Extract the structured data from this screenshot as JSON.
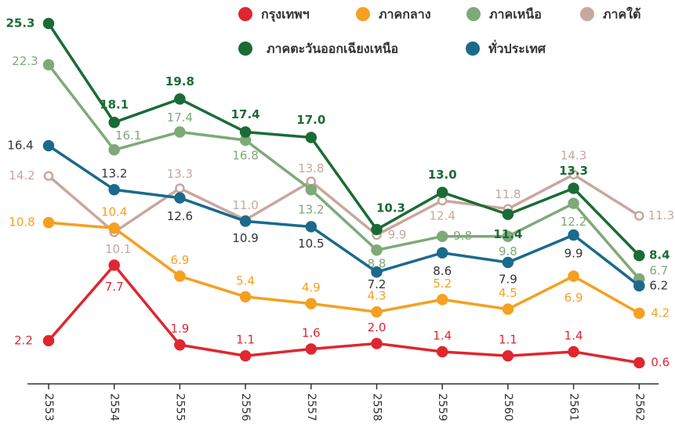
{
  "chart_data": {
    "type": "line",
    "categories": [
      "2553",
      "2554",
      "2555",
      "2556",
      "2557",
      "2558",
      "2559",
      "2560",
      "2561",
      "2562"
    ],
    "series": [
      {
        "name": "กรุงเทพฯ",
        "color": "#e0262f",
        "values": [
          2.2,
          7.7,
          1.9,
          1.1,
          1.6,
          2.0,
          1.4,
          1.1,
          1.4,
          0.6
        ],
        "value_labels": [
          "2.2",
          "7.7",
          "1.9",
          "1.1",
          "1.6",
          "2.0",
          "1.4",
          "1.1",
          "1.4",
          "0.6"
        ]
      },
      {
        "name": "ภาคกลาง",
        "color": "#f5a020",
        "values": [
          10.8,
          10.4,
          6.9,
          5.4,
          4.9,
          4.3,
          5.2,
          4.5,
          6.9,
          4.2
        ],
        "value_labels": [
          "10.8",
          "10.4",
          "6.9",
          "5.4",
          "4.9",
          "4.3",
          "5.2",
          "4.5",
          "6.9",
          "4.2"
        ]
      },
      {
        "name": "ภาคเหนือ",
        "color": "#7eaa78",
        "values": [
          22.3,
          16.1,
          17.4,
          16.8,
          13.2,
          8.8,
          9.8,
          9.8,
          12.2,
          6.7
        ],
        "value_labels": [
          "22.3",
          "16.1",
          "17.4",
          "16.8",
          "13.2",
          "8.8",
          "9.8",
          "9.8",
          "12.2",
          "6.7"
        ]
      },
      {
        "name": "ภาคใต้",
        "color": "#c8a79d",
        "values": [
          14.2,
          10.1,
          13.3,
          11.0,
          13.8,
          9.9,
          12.4,
          11.8,
          14.3,
          11.3
        ],
        "value_labels": [
          "14.2",
          "10.1",
          "13.3",
          "11.0",
          "13.8",
          "9.9",
          "12.4",
          "11.8",
          "14.3",
          "11.3"
        ]
      },
      {
        "name": "ภาคตะวันออกเฉียงเหนือ",
        "color": "#1b6b36",
        "values": [
          25.3,
          18.1,
          19.8,
          17.4,
          17.0,
          10.3,
          13.0,
          11.4,
          13.3,
          8.4
        ],
        "value_labels": [
          "25.3",
          "18.1",
          "19.8",
          "17.4",
          "17.0",
          "10.3",
          "13.0",
          "11.4",
          "13.3",
          "8.4"
        ]
      },
      {
        "name": "ทั่วประเทศ",
        "color": "#1b6a8c",
        "values": [
          16.4,
          13.2,
          12.6,
          10.9,
          10.5,
          7.2,
          8.6,
          7.9,
          9.9,
          6.2
        ],
        "value_labels": [
          "16.4",
          "13.2",
          "12.6",
          "10.9",
          "10.5",
          "7.2",
          "8.6",
          "7.9",
          "9.9",
          "6.2"
        ]
      }
    ]
  }
}
